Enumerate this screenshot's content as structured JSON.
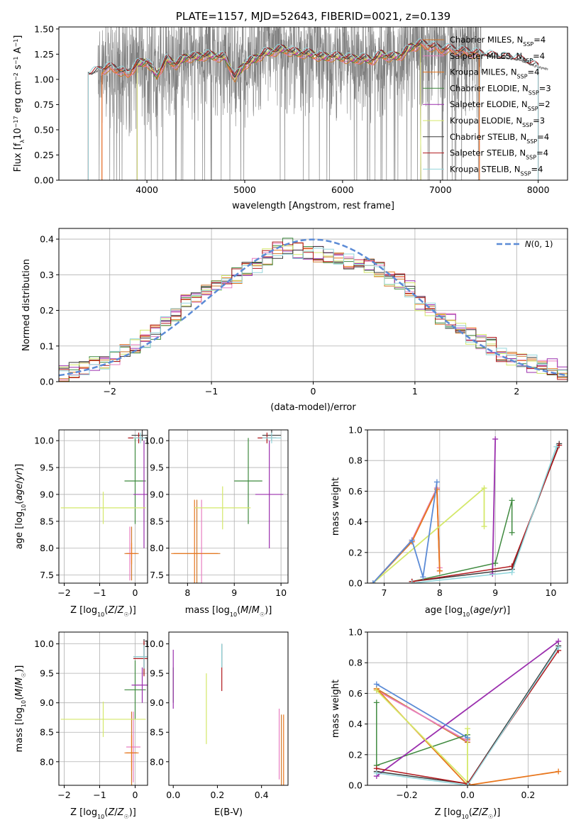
{
  "colors": {
    "Chabrier MILES": "#d0782a",
    "Salpeter MILES": "#e87fc1",
    "Kroupa MILES": "#e8761c",
    "Chabrier ELODIE": "#3f8a3f",
    "Salpeter ELODIE": "#9b2fae",
    "Kroupa ELODIE": "#d4e86a",
    "Chabrier STELIB": "#3a3a3a",
    "Salpeter STELIB": "#b0181d",
    "Kroupa STELIB": "#93d6dc",
    "normal": "#5b8bd6",
    "data": "#7f7f7f"
  },
  "chart_data": [
    {
      "id": "spectrum",
      "type": "line",
      "title": "PLATE=1157, MJD=52643, FIBERID=0021, z=0.139",
      "xlabel": "wavelength [Angstrom, rest frame]",
      "ylabel": "Flux [f_λ10^-17 erg cm^-2 s^-1 A^-1]",
      "xlim": [
        3100,
        8300
      ],
      "ylim": [
        0,
        1.52
      ],
      "xticks": [
        "4000",
        "5000",
        "6000",
        "7000",
        "8000"
      ],
      "yticks": [
        "0.00",
        "0.25",
        "0.50",
        "0.75",
        "1.00",
        "1.25",
        "1.50"
      ],
      "grid": false,
      "legend_position": "top-right",
      "legend": [
        {
          "name": "Chabrier MILES",
          "nssp": "4"
        },
        {
          "name": "Salpeter MILES",
          "nssp": "4"
        },
        {
          "name": "Kroupa MILES",
          "nssp": "4"
        },
        {
          "name": "Chabrier ELODIE",
          "nssp": "3"
        },
        {
          "name": "Salpeter ELODIE",
          "nssp": "2"
        },
        {
          "name": "Kroupa ELODIE",
          "nssp": "3"
        },
        {
          "name": "Chabrier STELIB",
          "nssp": "4"
        },
        {
          "name": "Salpeter STELIB",
          "nssp": "4"
        },
        {
          "name": "Kroupa STELIB",
          "nssp": "4"
        }
      ],
      "model_continuum": {
        "x": [
          3400,
          3500,
          3600,
          3700,
          3800,
          3900,
          4000,
          4100,
          4200,
          4300,
          4400,
          4500,
          4600,
          4700,
          4800,
          4900,
          5000,
          5100,
          5200,
          5300,
          5400,
          5500,
          5600,
          5700,
          5800,
          5900,
          6000,
          6100,
          6200,
          6300,
          6400,
          6500,
          6600,
          6700,
          6800,
          6900,
          7000,
          7100,
          7200,
          7300,
          7400,
          7600,
          7800,
          8000,
          8100
        ],
        "y": [
          1.05,
          1.08,
          1.12,
          1.1,
          1.05,
          1.15,
          1.18,
          1.04,
          1.2,
          1.15,
          1.22,
          1.22,
          1.24,
          1.23,
          1.22,
          1.02,
          1.15,
          1.2,
          1.26,
          1.28,
          1.3,
          1.27,
          1.26,
          1.25,
          1.22,
          1.23,
          1.22,
          1.2,
          1.21,
          1.19,
          1.25,
          1.22,
          1.24,
          1.32,
          1.35,
          1.33,
          1.3,
          1.3,
          1.28,
          1.27,
          1.25,
          1.22,
          1.2,
          1.12,
          1.1
        ]
      }
    },
    {
      "id": "residuals",
      "type": "bar",
      "xlabel": "(data-model)/error",
      "ylabel": "Normed distribution",
      "xlim": [
        -2.5,
        2.5
      ],
      "ylim": [
        0,
        0.43
      ],
      "xticks": [
        "−2",
        "−1",
        "0",
        "1",
        "2"
      ],
      "yticks": [
        "0.0",
        "0.1",
        "0.2",
        "0.3",
        "0.4"
      ],
      "grid": true,
      "legend_label": "N(0,1)",
      "bin_width": 0.1,
      "histogram_centers": [
        -2.45,
        -2.35,
        -2.25,
        -2.15,
        -2.05,
        -1.95,
        -1.85,
        -1.75,
        -1.65,
        -1.55,
        -1.45,
        -1.35,
        -1.25,
        -1.15,
        -1.05,
        -0.95,
        -0.85,
        -0.75,
        -0.65,
        -0.55,
        -0.45,
        -0.35,
        -0.25,
        -0.15,
        -0.05,
        0.05,
        0.15,
        0.25,
        0.35,
        0.45,
        0.55,
        0.65,
        0.75,
        0.85,
        0.95,
        1.05,
        1.15,
        1.25,
        1.35,
        1.45,
        1.55,
        1.65,
        1.75,
        1.85,
        1.95,
        2.05,
        2.15,
        2.25,
        2.35,
        2.45
      ],
      "histogram_values": [
        0.02,
        0.03,
        0.04,
        0.05,
        0.06,
        0.07,
        0.08,
        0.1,
        0.12,
        0.14,
        0.17,
        0.19,
        0.22,
        0.24,
        0.25,
        0.27,
        0.28,
        0.3,
        0.31,
        0.33,
        0.35,
        0.37,
        0.38,
        0.37,
        0.36,
        0.36,
        0.35,
        0.35,
        0.34,
        0.33,
        0.33,
        0.31,
        0.29,
        0.28,
        0.26,
        0.22,
        0.2,
        0.18,
        0.17,
        0.15,
        0.13,
        0.11,
        0.1,
        0.08,
        0.07,
        0.06,
        0.05,
        0.04,
        0.04,
        0.03
      ]
    },
    {
      "id": "age-vs-Z",
      "type": "scatter",
      "xlabel": "Z [log10(Z/Z☉)]",
      "ylabel": "age [log10(age/yr)]",
      "xlim": [
        -2.15,
        0.35
      ],
      "ylim": [
        7.35,
        10.2
      ],
      "xticks": [
        "−2",
        "−1",
        "0"
      ],
      "yticks": [
        "7.5",
        "8.0",
        "8.5",
        "9.0",
        "9.5",
        "10.0"
      ],
      "grid": true,
      "points": [
        {
          "model": "Chabrier MILES",
          "x": -0.1,
          "y": 7.9,
          "xerr": 0.2,
          "yerr": 0.5
        },
        {
          "model": "Salpeter MILES",
          "x": -0.15,
          "y": 7.9,
          "xerr": 0.1,
          "yerr": 0.5
        },
        {
          "model": "Kroupa MILES",
          "x": -0.1,
          "y": 7.9,
          "xerr": 0.15,
          "yerr": 0.2
        },
        {
          "model": "Chabrier ELODIE",
          "x": 0.0,
          "y": 9.25,
          "xerr": 0.3,
          "yerr": 0.8
        },
        {
          "model": "Salpeter ELODIE",
          "x": 0.25,
          "y": 9.0,
          "xerr": 0.3,
          "yerr": 1.0
        },
        {
          "model": "Kroupa ELODIE",
          "x": -0.9,
          "y": 8.75,
          "xerr": 1.2,
          "yerr": 0.3
        },
        {
          "model": "Chabrier STELIB",
          "x": 0.2,
          "y": 10.1,
          "xerr": 0.3,
          "yerr": 0.1
        },
        {
          "model": "Salpeter STELIB",
          "x": 0.1,
          "y": 10.05,
          "xerr": 0.3,
          "yerr": 0.1
        },
        {
          "model": "Kroupa STELIB",
          "x": 0.15,
          "y": 10.05,
          "xerr": 0.2,
          "yerr": 0.1
        }
      ]
    },
    {
      "id": "age-vs-mass",
      "type": "scatter",
      "xlabel": "mass [log10(M/M☉)]",
      "ylabel": "",
      "xlim": [
        7.6,
        10.15
      ],
      "ylim": [
        7.35,
        10.2
      ],
      "xticks": [
        "8",
        "9",
        "10"
      ],
      "yticks": [
        "7.5",
        "8.0",
        "8.5",
        "9.0",
        "9.5",
        "10.0"
      ],
      "grid": true,
      "points": [
        {
          "model": "Chabrier MILES",
          "x": 8.2,
          "y": 7.9,
          "xerr": 0.5,
          "yerr": 1.0
        },
        {
          "model": "Salpeter MILES",
          "x": 8.3,
          "y": 7.9,
          "xerr": 0.05,
          "yerr": 1.0
        },
        {
          "model": "Kroupa MILES",
          "x": 8.15,
          "y": 7.9,
          "xerr": 0.5,
          "yerr": 1.0
        },
        {
          "model": "Chabrier ELODIE",
          "x": 9.3,
          "y": 9.25,
          "xerr": 0.3,
          "yerr": 0.8
        },
        {
          "model": "Salpeter ELODIE",
          "x": 9.75,
          "y": 9.0,
          "xerr": 0.3,
          "yerr": 1.0
        },
        {
          "model": "Kroupa ELODIE",
          "x": 8.75,
          "y": 8.75,
          "xerr": 0.6,
          "yerr": 0.4
        },
        {
          "model": "Chabrier STELIB",
          "x": 9.8,
          "y": 10.1,
          "xerr": 0.2,
          "yerr": 0.1
        },
        {
          "model": "Salpeter STELIB",
          "x": 9.7,
          "y": 10.05,
          "xerr": 0.2,
          "yerr": 0.1
        },
        {
          "model": "Kroupa STELIB",
          "x": 9.8,
          "y": 10.05,
          "xerr": 0.2,
          "yerr": 0.1
        }
      ]
    },
    {
      "id": "weight-vs-age",
      "type": "line",
      "xlabel": "age [log10(age/yr)]",
      "ylabel": "mass weight",
      "xlim": [
        6.7,
        10.3
      ],
      "ylim": [
        0,
        1.0
      ],
      "xticks": [
        "7",
        "8",
        "9",
        "10"
      ],
      "yticks": [
        "0.0",
        "0.2",
        "0.4",
        "0.6",
        "0.8",
        "1.0"
      ],
      "grid": true,
      "series": [
        {
          "model": "Chabrier MILES",
          "x": [
            6.8,
            7.5,
            7.95,
            8.0
          ],
          "y": [
            0.0,
            0.28,
            0.62,
            0.08
          ]
        },
        {
          "model": "Salpeter MILES",
          "x": [
            6.8,
            7.5,
            7.95,
            8.0
          ],
          "y": [
            0.0,
            0.28,
            0.62,
            0.1
          ]
        },
        {
          "model": "Kroupa MILES",
          "x": [
            6.8,
            7.5,
            7.95,
            8.0
          ],
          "y": [
            0.0,
            0.27,
            0.61,
            0.08
          ]
        },
        {
          "model": "Chabrier ELODIE",
          "x": [
            7.5,
            9.0,
            9.3,
            9.3
          ],
          "y": [
            0.01,
            0.13,
            0.54,
            0.33
          ]
        },
        {
          "model": "Salpeter ELODIE",
          "x": [
            8.95,
            9.0
          ],
          "y": [
            0.06,
            0.94
          ]
        },
        {
          "model": "Kroupa ELODIE",
          "x": [
            6.8,
            8.8,
            8.8
          ],
          "y": [
            0.0,
            0.62,
            0.37
          ]
        },
        {
          "model": "Chabrier STELIB",
          "x": [
            7.5,
            9.3,
            10.15
          ],
          "y": [
            0.01,
            0.09,
            0.91
          ]
        },
        {
          "model": "Salpeter STELIB",
          "x": [
            7.5,
            9.3,
            10.15
          ],
          "y": [
            0.01,
            0.11,
            0.9
          ]
        },
        {
          "model": "Kroupa STELIB",
          "x": [
            7.5,
            9.3,
            10.1
          ],
          "y": [
            0.0,
            0.07,
            0.89
          ]
        },
        {
          "model": "normal-blue",
          "x": [
            6.8,
            7.5,
            7.7,
            7.95
          ],
          "y": [
            0.0,
            0.28,
            0.04,
            0.66
          ]
        }
      ]
    },
    {
      "id": "mass-vs-Z",
      "type": "scatter",
      "xlabel": "Z [log10(Z/Z☉)]",
      "ylabel": "mass [log10(M/M☉)]",
      "xlim": [
        -2.15,
        0.35
      ],
      "ylim": [
        7.6,
        10.2
      ],
      "xticks": [
        "−2",
        "−1",
        "0"
      ],
      "yticks": [
        "8.0",
        "8.5",
        "9.0",
        "9.5",
        "10.0"
      ],
      "grid": true,
      "points": [
        {
          "model": "Chabrier MILES",
          "x": -0.1,
          "y": 8.15,
          "xerr": 0.15,
          "yerr": 0.7
        },
        {
          "model": "Salpeter MILES",
          "x": -0.05,
          "y": 8.25,
          "xerr": 0.2,
          "yerr": 0.6
        },
        {
          "model": "Kroupa MILES",
          "x": -0.1,
          "y": 8.15,
          "xerr": 0.2,
          "yerr": 0.3
        },
        {
          "model": "Chabrier ELODIE",
          "x": 0.0,
          "y": 9.22,
          "xerr": 0.3,
          "yerr": 0.5
        },
        {
          "model": "Salpeter ELODIE",
          "x": 0.2,
          "y": 9.3,
          "xerr": 0.3,
          "yerr": 0.3
        },
        {
          "model": "Kroupa ELODIE",
          "x": -0.9,
          "y": 8.72,
          "xerr": 1.2,
          "yerr": 0.3
        },
        {
          "model": "Chabrier STELIB",
          "x": 0.25,
          "y": 9.78,
          "xerr": 0.3,
          "yerr": 0.3
        },
        {
          "model": "Salpeter STELIB",
          "x": 0.25,
          "y": 9.75,
          "xerr": 0.3,
          "yerr": 0.3
        },
        {
          "model": "Kroupa STELIB",
          "x": 0.25,
          "y": 9.78,
          "xerr": 0.3,
          "yerr": 0.2
        }
      ]
    },
    {
      "id": "mass-vs-ebv",
      "type": "scatter",
      "xlabel": "E(B-V)",
      "ylabel": "",
      "xlim": [
        -0.02,
        0.52
      ],
      "ylim": [
        7.6,
        10.2
      ],
      "xticks": [
        "0.0",
        "0.2",
        "0.4"
      ],
      "yticks": [
        "8.0",
        "8.5",
        "9.0",
        "9.5",
        "10.0"
      ],
      "grid": false,
      "points": [
        {
          "model": "Chabrier MILES",
          "x": 0.49,
          "y": 8.2,
          "yerr": 0.6
        },
        {
          "model": "Salpeter MILES",
          "x": 0.48,
          "y": 8.3,
          "yerr": 0.6
        },
        {
          "model": "Kroupa MILES",
          "x": 0.5,
          "y": 8.2,
          "yerr": 0.6
        },
        {
          "model": "Chabrier ELODIE",
          "x": 0.0,
          "y": 9.3,
          "yerr": 0.3
        },
        {
          "model": "Salpeter ELODIE",
          "x": 0.0,
          "y": 9.4,
          "yerr": 0.5
        },
        {
          "model": "Kroupa ELODIE",
          "x": 0.15,
          "y": 8.9,
          "yerr": 0.6
        },
        {
          "model": "Chabrier STELIB",
          "x": 0.22,
          "y": 9.8,
          "yerr": 0.2
        },
        {
          "model": "Salpeter STELIB",
          "x": 0.22,
          "y": 9.4,
          "yerr": 0.2
        },
        {
          "model": "Kroupa STELIB",
          "x": 0.22,
          "y": 9.8,
          "yerr": 0.2
        }
      ]
    },
    {
      "id": "weight-vs-Z",
      "type": "line",
      "xlabel": "Z [log10(Z/Z☉)]",
      "ylabel": "mass weight",
      "xlim": [
        -0.33,
        0.33
      ],
      "ylim": [
        0,
        1.0
      ],
      "xticks": [
        "−0.2",
        "0.0",
        "0.2"
      ],
      "yticks": [
        "0.0",
        "0.2",
        "0.4",
        "0.6",
        "0.8",
        "1.0"
      ],
      "grid": true,
      "series": [
        {
          "model": "Chabrier MILES",
          "x": [
            -0.3,
            0.0,
            0.0
          ],
          "y": [
            0.63,
            0.28,
            0.3
          ]
        },
        {
          "model": "Salpeter MILES",
          "x": [
            -0.3,
            0.0
          ],
          "y": [
            0.62,
            0.29
          ]
        },
        {
          "model": "Kroupa MILES",
          "x": [
            -0.3,
            0.0,
            0.3
          ],
          "y": [
            0.63,
            0.0,
            0.09
          ]
        },
        {
          "model": "Chabrier ELODIE",
          "x": [
            -0.3,
            -0.3,
            0.0
          ],
          "y": [
            0.54,
            0.13,
            0.33
          ]
        },
        {
          "model": "Salpeter ELODIE",
          "x": [
            -0.3,
            0.3
          ],
          "y": [
            0.06,
            0.94
          ]
        },
        {
          "model": "Kroupa ELODIE",
          "x": [
            -0.3,
            0.0,
            0.0
          ],
          "y": [
            0.62,
            0.02,
            0.37
          ]
        },
        {
          "model": "Chabrier STELIB",
          "x": [
            -0.3,
            0.0,
            0.3
          ],
          "y": [
            0.09,
            0.01,
            0.91
          ]
        },
        {
          "model": "Salpeter STELIB",
          "x": [
            -0.3,
            0.0,
            0.3
          ],
          "y": [
            0.11,
            0.01,
            0.88
          ]
        },
        {
          "model": "Kroupa STELIB",
          "x": [
            -0.3,
            0.0,
            0.3
          ],
          "y": [
            0.08,
            0.0,
            0.9
          ]
        },
        {
          "model": "normal-blue",
          "x": [
            -0.3,
            0.0
          ],
          "y": [
            0.66,
            0.31
          ]
        }
      ]
    }
  ]
}
